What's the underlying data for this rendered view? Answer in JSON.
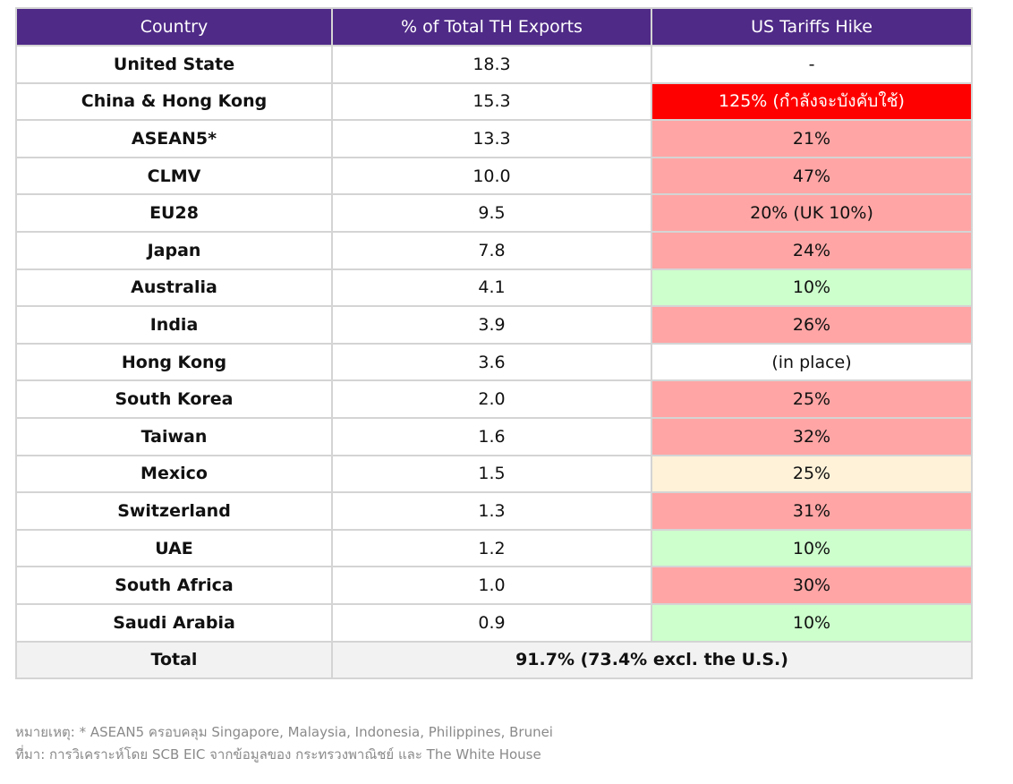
{
  "table": {
    "headers": [
      "Country",
      "% of Total TH Exports",
      "US Tariffs Hike"
    ],
    "rows": [
      {
        "country": "United State",
        "share": "18.3",
        "tariff": "-",
        "tariff_color": "#ffffff"
      },
      {
        "country": "China & Hong Kong",
        "share": "15.3",
        "tariff": "125% (กำลังจะบังคับใช้)",
        "tariff_color": "#ff0000"
      },
      {
        "country": "ASEAN5*",
        "share": "13.3",
        "tariff": "21%",
        "tariff_color": "#ffa5a5"
      },
      {
        "country": "CLMV",
        "share": "10.0",
        "tariff": "47%",
        "tariff_color": "#ffa5a5"
      },
      {
        "country": "EU28",
        "share": "9.5",
        "tariff": "20% (UK 10%)",
        "tariff_color": "#ffa5a5"
      },
      {
        "country": "Japan",
        "share": "7.8",
        "tariff": "24%",
        "tariff_color": "#ffa5a5"
      },
      {
        "country": "Australia",
        "share": "4.1",
        "tariff": "10%",
        "tariff_color": "#ccffcc"
      },
      {
        "country": "India",
        "share": "3.9",
        "tariff": "26%",
        "tariff_color": "#ffa5a5"
      },
      {
        "country": "Hong Kong",
        "share": "3.6",
        "tariff": "(in place)",
        "tariff_color": "#ffffff"
      },
      {
        "country": "South Korea",
        "share": "2.0",
        "tariff": "25%",
        "tariff_color": "#ffa5a5"
      },
      {
        "country": "Taiwan",
        "share": "1.6",
        "tariff": "32%",
        "tariff_color": "#ffa5a5"
      },
      {
        "country": "Mexico",
        "share": "1.5",
        "tariff": "25%",
        "tariff_color": "#fff2d9"
      },
      {
        "country": "Switzerland",
        "share": "1.3",
        "tariff": "31%",
        "tariff_color": "#ffa5a5"
      },
      {
        "country": "UAE",
        "share": "1.2",
        "tariff": "10%",
        "tariff_color": "#ccffcc"
      },
      {
        "country": "South Africa",
        "share": "1.0",
        "tariff": "30%",
        "tariff_color": "#ffa5a5"
      },
      {
        "country": "Saudi Arabia",
        "share": "0.9",
        "tariff": "10%",
        "tariff_color": "#ccffcc"
      }
    ],
    "total": {
      "label": "Total",
      "value": "91.7% (73.4% excl. the U.S.)"
    }
  },
  "notes": {
    "note": "หมายเหตุ: * ASEAN5 ครอบคลุม Singapore, Malaysia, Indonesia, Philippines, Brunei",
    "source": "ที่มา: การวิเคราะห์โดย SCB EIC จากข้อมูลของ กระทรวงพาณิชย์ และ The White House"
  },
  "colors": {
    "header": "#4f2a87",
    "high_tariff": "#ff0000",
    "tariff_pink": "#ffa5a5",
    "tariff_green": "#ccffcc",
    "tariff_cream": "#fff2d9",
    "total_bg": "#f2f2f2"
  }
}
